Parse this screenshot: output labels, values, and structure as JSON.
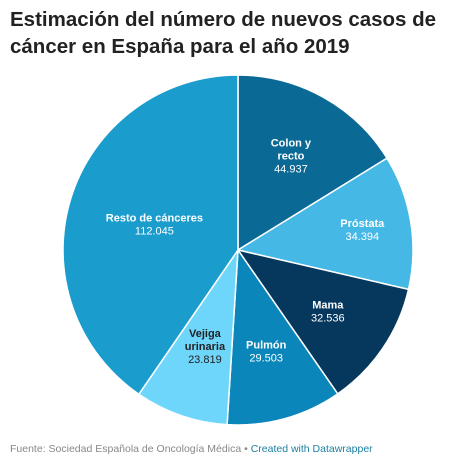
{
  "chart_data": {
    "type": "pie",
    "title": "Estimación del número de nuevos casos de cáncer en España para el año 2019",
    "slices": [
      {
        "name": "Colon y recto",
        "value": 44937,
        "value_label": "44.937",
        "color": "#0a6a95",
        "text_color": "#ffffff"
      },
      {
        "name": "Próstata",
        "value": 34394,
        "value_label": "34.394",
        "color": "#45b8e6",
        "text_color": "#ffffff"
      },
      {
        "name": "Mama",
        "value": 32536,
        "value_label": "32.536",
        "color": "#06375d",
        "text_color": "#ffffff"
      },
      {
        "name": "Pulmón",
        "value": 29503,
        "value_label": "29.503",
        "color": "#0b86ba",
        "text_color": "#ffffff"
      },
      {
        "name": "Vejiga urinaria",
        "value": 23819,
        "value_label": "23.819",
        "color": "#6fd6fb",
        "text_color": "#222222"
      },
      {
        "name": "Resto de cánceres",
        "value": 112045,
        "value_label": "112.045",
        "color": "#1a9ccd",
        "text_color": "#ffffff"
      }
    ]
  },
  "footer": {
    "source": "Fuente: Sociedad Española de Oncología Médica",
    "separator": "•",
    "credit": "Created with Datawrapper"
  }
}
